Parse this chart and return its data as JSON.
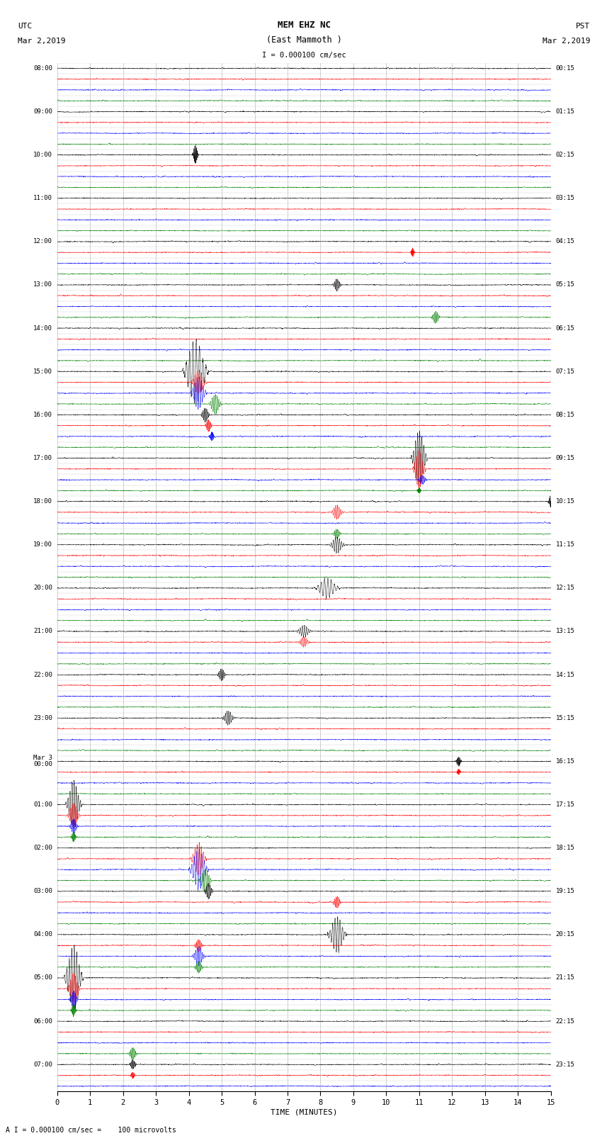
{
  "title_line1": "MEM EHZ NC",
  "title_line2": "(East Mammoth )",
  "title_line3": "I = 0.000100 cm/sec",
  "left_label": "UTC",
  "left_date": "Mar 2,2019",
  "right_label": "PST",
  "right_date": "Mar 2,2019",
  "xlabel": "TIME (MINUTES)",
  "footnote": "A I = 0.000100 cm/sec =    100 microvolts",
  "fig_width": 8.5,
  "fig_height": 16.13,
  "utc_times": [
    "08:00",
    "",
    "",
    "",
    "09:00",
    "",
    "",
    "",
    "10:00",
    "",
    "",
    "",
    "11:00",
    "",
    "",
    "",
    "12:00",
    "",
    "",
    "",
    "13:00",
    "",
    "",
    "",
    "14:00",
    "",
    "",
    "",
    "15:00",
    "",
    "",
    "",
    "16:00",
    "",
    "",
    "",
    "17:00",
    "",
    "",
    "",
    "18:00",
    "",
    "",
    "",
    "19:00",
    "",
    "",
    "",
    "20:00",
    "",
    "",
    "",
    "21:00",
    "",
    "",
    "",
    "22:00",
    "",
    "",
    "",
    "23:00",
    "",
    "",
    "",
    "Mar 3\n00:00",
    "",
    "",
    "",
    "01:00",
    "",
    "",
    "",
    "02:00",
    "",
    "",
    "",
    "03:00",
    "",
    "",
    "",
    "04:00",
    "",
    "",
    "",
    "05:00",
    "",
    "",
    "",
    "06:00",
    "",
    "",
    "",
    "07:00",
    "",
    ""
  ],
  "pst_times": [
    "00:15",
    "",
    "",
    "",
    "01:15",
    "",
    "",
    "",
    "02:15",
    "",
    "",
    "",
    "03:15",
    "",
    "",
    "",
    "04:15",
    "",
    "",
    "",
    "05:15",
    "",
    "",
    "",
    "06:15",
    "",
    "",
    "",
    "07:15",
    "",
    "",
    "",
    "08:15",
    "",
    "",
    "",
    "09:15",
    "",
    "",
    "",
    "10:15",
    "",
    "",
    "",
    "11:15",
    "",
    "",
    "",
    "12:15",
    "",
    "",
    "",
    "13:15",
    "",
    "",
    "",
    "14:15",
    "",
    "",
    "",
    "15:15",
    "",
    "",
    "",
    "16:15",
    "",
    "",
    "",
    "17:15",
    "",
    "",
    "",
    "18:15",
    "",
    "",
    "",
    "19:15",
    "",
    "",
    "",
    "20:15",
    "",
    "",
    "",
    "21:15",
    "",
    "",
    "",
    "22:15",
    "",
    "",
    "",
    "23:15",
    "",
    ""
  ],
  "colors": [
    "black",
    "red",
    "blue",
    "green"
  ],
  "bg_color": "white",
  "grid_color": "#777777",
  "num_rows": 95,
  "minutes": 15,
  "seed": 12345,
  "events": [
    {
      "row": 8,
      "t": 4.2,
      "amp": 2.5,
      "dur": 0.2,
      "color": "green"
    },
    {
      "row": 17,
      "t": 10.8,
      "amp": 1.2,
      "dur": 0.15,
      "color": "blue"
    },
    {
      "row": 20,
      "t": 8.5,
      "amp": 1.5,
      "dur": 0.3,
      "color": "red"
    },
    {
      "row": 23,
      "t": 11.5,
      "amp": 1.5,
      "dur": 0.3,
      "color": "blue"
    },
    {
      "row": 28,
      "t": 4.2,
      "amp": 8.0,
      "dur": 0.8,
      "color": "red"
    },
    {
      "row": 29,
      "t": 4.3,
      "amp": 3.0,
      "dur": 0.5,
      "color": "black"
    },
    {
      "row": 30,
      "t": 4.3,
      "amp": 4.0,
      "dur": 0.5,
      "color": "red"
    },
    {
      "row": 31,
      "t": 4.8,
      "amp": 2.5,
      "dur": 0.4,
      "color": "blue"
    },
    {
      "row": 32,
      "t": 4.5,
      "amp": 1.8,
      "dur": 0.3,
      "color": "green"
    },
    {
      "row": 33,
      "t": 4.6,
      "amp": 1.5,
      "dur": 0.25,
      "color": "black"
    },
    {
      "row": 34,
      "t": 4.7,
      "amp": 1.2,
      "dur": 0.2,
      "color": "red"
    },
    {
      "row": 36,
      "t": 11.0,
      "amp": 7.0,
      "dur": 0.5,
      "color": "black"
    },
    {
      "row": 37,
      "t": 11.0,
      "amp": 5.0,
      "dur": 0.4,
      "color": "red"
    },
    {
      "row": 38,
      "t": 11.1,
      "amp": 1.2,
      "dur": 0.3,
      "color": "blue"
    },
    {
      "row": 39,
      "t": 11.0,
      "amp": 0.8,
      "dur": 0.15,
      "color": "green"
    },
    {
      "row": 40,
      "t": 15.0,
      "amp": 1.5,
      "dur": 0.2,
      "color": "black"
    },
    {
      "row": 41,
      "t": 8.5,
      "amp": 1.8,
      "dur": 0.4,
      "color": "red"
    },
    {
      "row": 43,
      "t": 8.5,
      "amp": 1.2,
      "dur": 0.3,
      "color": "green"
    },
    {
      "row": 44,
      "t": 8.5,
      "amp": 2.0,
      "dur": 0.5,
      "color": "black"
    },
    {
      "row": 48,
      "t": 8.2,
      "amp": 2.5,
      "dur": 0.8,
      "color": "red"
    },
    {
      "row": 52,
      "t": 7.5,
      "amp": 1.5,
      "dur": 0.5,
      "color": "black"
    },
    {
      "row": 53,
      "t": 7.5,
      "amp": 1.2,
      "dur": 0.4,
      "color": "red"
    },
    {
      "row": 56,
      "t": 5.0,
      "amp": 1.5,
      "dur": 0.3,
      "color": "blue"
    },
    {
      "row": 60,
      "t": 5.2,
      "amp": 1.8,
      "dur": 0.4,
      "color": "blue"
    },
    {
      "row": 64,
      "t": 12.2,
      "amp": 1.2,
      "dur": 0.2,
      "color": "black"
    },
    {
      "row": 65,
      "t": 12.2,
      "amp": 0.8,
      "dur": 0.15,
      "color": "red"
    },
    {
      "row": 68,
      "t": 0.5,
      "amp": 6.0,
      "dur": 0.5,
      "color": "black"
    },
    {
      "row": 69,
      "t": 0.5,
      "amp": 3.0,
      "dur": 0.4,
      "color": "red"
    },
    {
      "row": 70,
      "t": 0.5,
      "amp": 1.8,
      "dur": 0.3,
      "color": "blue"
    },
    {
      "row": 71,
      "t": 0.5,
      "amp": 1.2,
      "dur": 0.2,
      "color": "green"
    },
    {
      "row": 73,
      "t": 4.3,
      "amp": 4.0,
      "dur": 0.5,
      "color": "blue"
    },
    {
      "row": 74,
      "t": 4.3,
      "amp": 5.0,
      "dur": 0.6,
      "color": "blue"
    },
    {
      "row": 75,
      "t": 4.5,
      "amp": 3.0,
      "dur": 0.4,
      "color": "black"
    },
    {
      "row": 76,
      "t": 4.6,
      "amp": 2.0,
      "dur": 0.3,
      "color": "red"
    },
    {
      "row": 77,
      "t": 8.5,
      "amp": 1.5,
      "dur": 0.3,
      "color": "blue"
    },
    {
      "row": 80,
      "t": 8.5,
      "amp": 4.5,
      "dur": 0.6,
      "color": "blue"
    },
    {
      "row": 81,
      "t": 4.3,
      "amp": 1.5,
      "dur": 0.3,
      "color": "green"
    },
    {
      "row": 82,
      "t": 4.3,
      "amp": 2.5,
      "dur": 0.4,
      "color": "green"
    },
    {
      "row": 83,
      "t": 4.3,
      "amp": 1.5,
      "dur": 0.3,
      "color": "black"
    },
    {
      "row": 84,
      "t": 0.5,
      "amp": 8.0,
      "dur": 0.6,
      "color": "green"
    },
    {
      "row": 85,
      "t": 0.5,
      "amp": 4.0,
      "dur": 0.4,
      "color": "black"
    },
    {
      "row": 86,
      "t": 0.5,
      "amp": 2.0,
      "dur": 0.3,
      "color": "red"
    },
    {
      "row": 87,
      "t": 0.5,
      "amp": 1.5,
      "dur": 0.2,
      "color": "blue"
    },
    {
      "row": 91,
      "t": 2.3,
      "amp": 1.5,
      "dur": 0.3,
      "color": "red"
    },
    {
      "row": 92,
      "t": 2.3,
      "amp": 1.2,
      "dur": 0.25,
      "color": "black"
    },
    {
      "row": 93,
      "t": 2.3,
      "amp": 0.8,
      "dur": 0.2,
      "color": "blue"
    }
  ]
}
